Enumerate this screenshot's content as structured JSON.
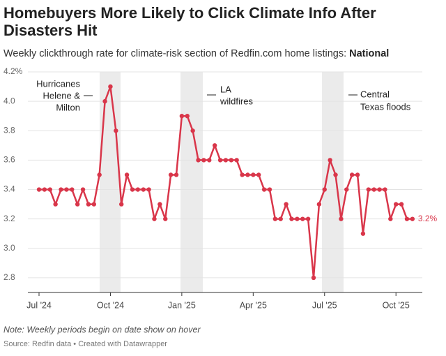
{
  "chart_data": {
    "type": "line",
    "title": [
      "Homebuyers More Likely to Click Climate Info After",
      "Disasters Hit"
    ],
    "subtitle": "Weekly clickthrough rate for climate-risk section of Redfin.com home listings:",
    "subtitle_bold": "National",
    "note": "Note: Weekly periods begin on date show on hover",
    "source": "Source: Redfin data • Created with Datawrapper",
    "categories": [
      "Jul '24",
      null,
      null,
      null,
      null,
      null,
      null,
      null,
      null,
      null,
      null,
      null,
      null,
      "Oct '24",
      null,
      null,
      null,
      null,
      null,
      null,
      null,
      null,
      null,
      null,
      null,
      null,
      "Jan '25",
      null,
      null,
      null,
      null,
      null,
      null,
      null,
      null,
      null,
      null,
      null,
      null,
      "Apr '25",
      null,
      null,
      null,
      null,
      null,
      null,
      null,
      null,
      null,
      null,
      null,
      null,
      "Jul '25",
      null,
      null,
      null,
      null,
      null,
      null,
      null,
      null,
      null,
      null,
      null,
      null,
      "Oct '25",
      null,
      null,
      null
    ],
    "series": [
      {
        "name": "National",
        "color": "#d9364a",
        "values": [
          3.4,
          3.4,
          3.4,
          3.3,
          3.4,
          3.4,
          3.4,
          3.3,
          3.4,
          3.3,
          3.3,
          3.5,
          4.0,
          4.1,
          3.8,
          3.3,
          3.5,
          3.4,
          3.4,
          3.4,
          3.4,
          3.2,
          3.3,
          3.2,
          3.5,
          3.5,
          3.9,
          3.9,
          3.8,
          3.6,
          3.6,
          3.6,
          3.7,
          3.6,
          3.6,
          3.6,
          3.6,
          3.5,
          3.5,
          3.5,
          3.5,
          3.4,
          3.4,
          3.2,
          3.2,
          3.3,
          3.2,
          3.2,
          3.2,
          3.2,
          2.8,
          3.3,
          3.4,
          3.6,
          3.5,
          3.2,
          3.4,
          3.5,
          3.5,
          3.1,
          3.4,
          3.4,
          3.4,
          3.4,
          3.2,
          3.3,
          3.3,
          3.2,
          3.2
        ],
        "value_labels": [
          null,
          null,
          null,
          null,
          null,
          null,
          null,
          null,
          null,
          null,
          null,
          null,
          null,
          null,
          null,
          null,
          null,
          null,
          null,
          null,
          null,
          null,
          null,
          null,
          null,
          null,
          null,
          null,
          null,
          null,
          null,
          null,
          null,
          null,
          null,
          null,
          null,
          null,
          null,
          null,
          null,
          null,
          null,
          null,
          null,
          null,
          null,
          null,
          null,
          null,
          null,
          null,
          null,
          null,
          null,
          null,
          null,
          null,
          null,
          null,
          null,
          null,
          null,
          null,
          null,
          null,
          null,
          null,
          "3.2%"
        ]
      }
    ],
    "ylim": [
      2.7,
      4.2
    ],
    "yticks": [
      2.8,
      {
        "value": 3,
        "label": "3.0"
      },
      3.2,
      3.4,
      3.6,
      3.8,
      {
        "value": 4,
        "label": "4.0"
      },
      {
        "value": 4.2,
        "label": "4.2%"
      }
    ],
    "grid": true,
    "annotations": [
      [
        "Hurricanes",
        "Helene &",
        "Milton"
      ],
      [
        "LA",
        "wildfires"
      ],
      [
        "Central",
        "Texas floods"
      ]
    ]
  }
}
